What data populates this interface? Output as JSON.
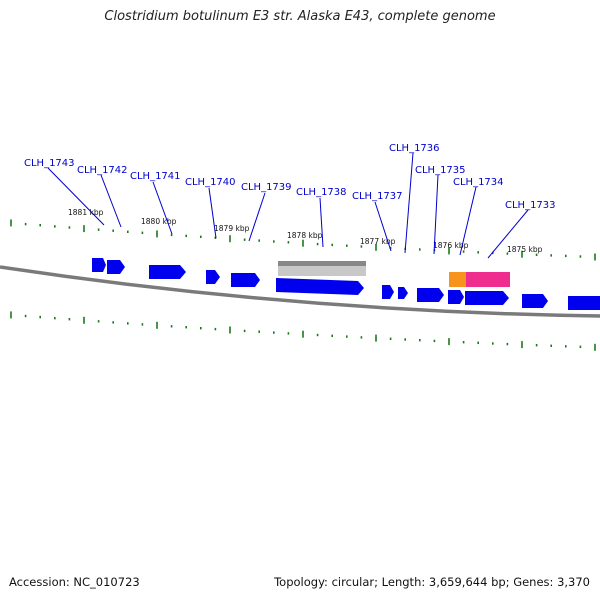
{
  "title": "Clostridium botulinum E3 str. Alaska E43, complete genome",
  "accession": "Accession: NC_010723",
  "topology": "Topology: circular; Length: 3,659,644 bp; Genes: 3,370",
  "colors": {
    "gene": "#0000ee",
    "gene_label": "#0000cc",
    "tick": "#1a7a1a",
    "backbone": "#7a7a7a",
    "pseudo_region": "#b8b8b8",
    "orange_feature": "#f7941d",
    "pink_feature": "#ee2d8f"
  },
  "genes": [
    {
      "id": "CLH_1743"
    },
    {
      "id": "CLH_1742"
    },
    {
      "id": "CLH_1741"
    },
    {
      "id": "CLH_1740"
    },
    {
      "id": "CLH_1739"
    },
    {
      "id": "CLH_1738"
    },
    {
      "id": "CLH_1737"
    },
    {
      "id": "CLH_1736"
    },
    {
      "id": "CLH_1735"
    },
    {
      "id": "CLH_1734"
    },
    {
      "id": "CLH_1733"
    }
  ],
  "kbp_labels": [
    "1881 kbp",
    "1880 kbp",
    "1879 kbp",
    "1878 kbp",
    "1877 kbp",
    "1876 kbp",
    "1875 kbp"
  ]
}
